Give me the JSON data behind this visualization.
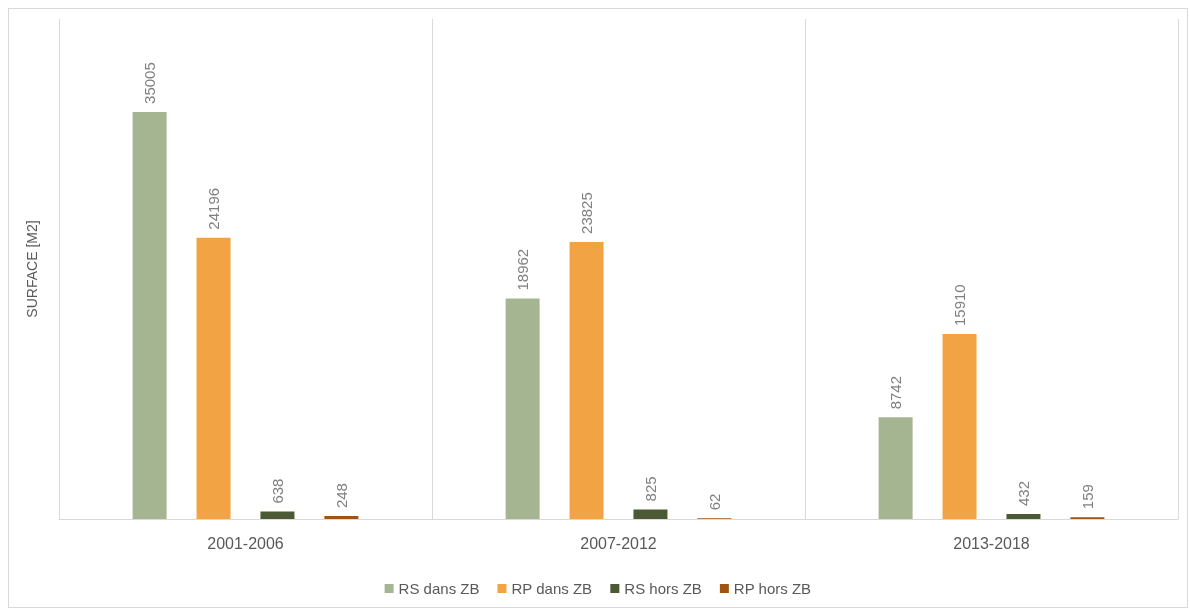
{
  "chart_data": {
    "type": "bar",
    "ylabel": "SURFACE [M2]",
    "categories": [
      "2001-2006",
      "2007-2012",
      "2013-2018"
    ],
    "series": [
      {
        "name": "RS dans ZB",
        "color": "#a5b592",
        "values": [
          35005,
          18962,
          8742
        ]
      },
      {
        "name": "RP dans ZB",
        "color": "#f2a444",
        "values": [
          24196,
          23825,
          15910
        ]
      },
      {
        "name": "RS hors ZB",
        "color": "#4b5a34",
        "values": [
          638,
          825,
          432
        ]
      },
      {
        "name": "RP hors ZB",
        "color": "#9e5511",
        "values": [
          248,
          62,
          159
        ]
      }
    ],
    "ylim": [
      0,
      43000
    ],
    "tick_labels": "x",
    "data_labels": true,
    "grid": "x",
    "legend": "bottom"
  }
}
